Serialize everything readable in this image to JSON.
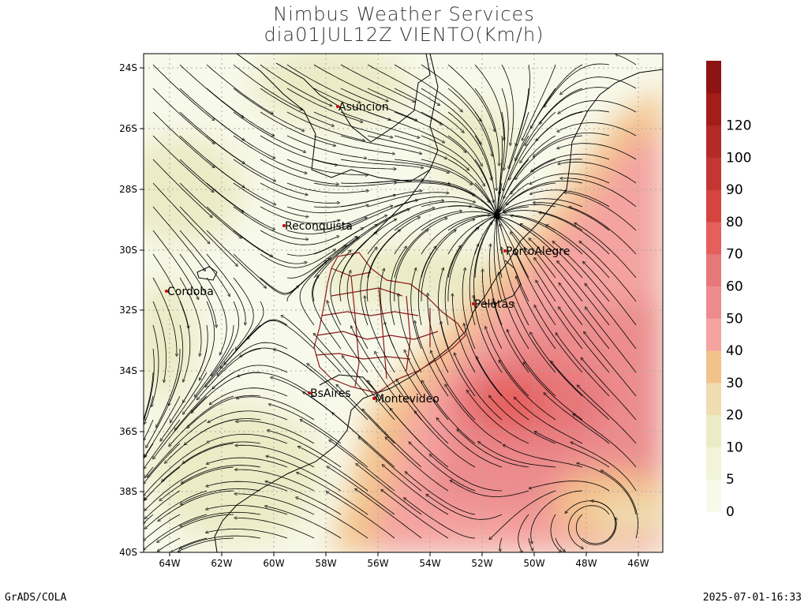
{
  "title": "Nimbus Weather Services",
  "subtitle": "dia01JUL12Z VIENTO(Km/h)",
  "footer_left": "GrADS/COLA",
  "footer_right": "2025-07-01-16:33",
  "lat_ticks": [
    "24S",
    "26S",
    "28S",
    "30S",
    "32S",
    "34S",
    "36S",
    "38S",
    "40S"
  ],
  "lon_ticks": [
    "64W",
    "62W",
    "60W",
    "58W",
    "56W",
    "54W",
    "52W",
    "50W",
    "48W",
    "46W"
  ],
  "colorbar": {
    "labels": [
      "0",
      "5",
      "10",
      "20",
      "30",
      "40",
      "50",
      "60",
      "70",
      "80",
      "90",
      "100",
      "120"
    ],
    "colors": [
      "#f7f9ea",
      "#f1f4d9",
      "#ebebc6",
      "#efdcb0",
      "#f3c28c",
      "#f4a3a0",
      "#ec8c8e",
      "#e7787a",
      "#e55f5c",
      "#d6443f",
      "#c33633",
      "#b42a27",
      "#a31e1b",
      "#8d1412"
    ]
  },
  "cities": [
    {
      "name": "Asuncion"
    },
    {
      "name": "Reconquista"
    },
    {
      "name": "PortoAlegre"
    },
    {
      "name": "Cordoba"
    },
    {
      "name": "Pelotas"
    },
    {
      "name": "BsAires"
    },
    {
      "name": "Montevideo"
    }
  ]
}
